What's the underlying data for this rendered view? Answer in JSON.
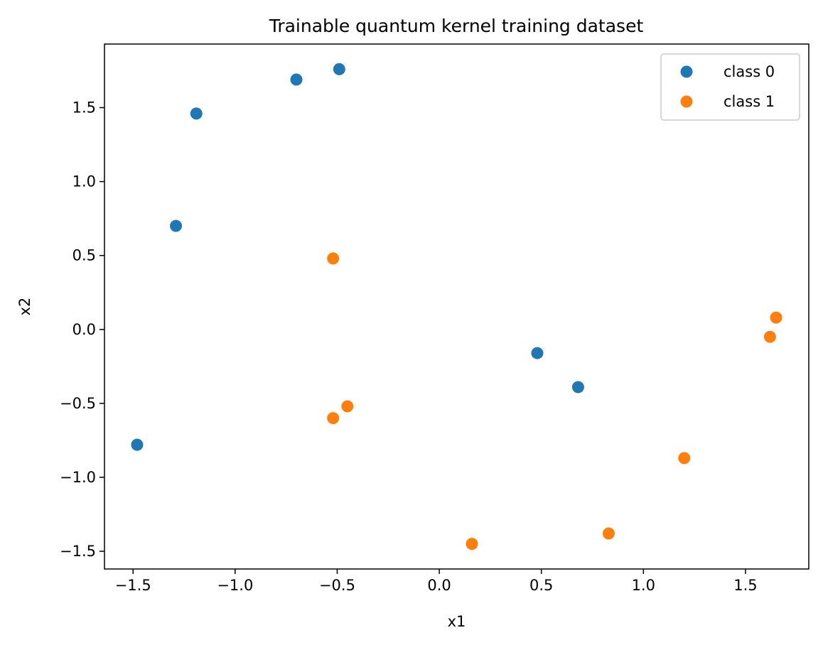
{
  "chart_data": {
    "type": "scatter",
    "title": "Trainable quantum kernel training dataset",
    "xlabel": "x1",
    "ylabel": "x2",
    "xlim": [
      -1.64,
      1.81
    ],
    "ylim": [
      -1.62,
      1.93
    ],
    "xticks": [
      -1.5,
      -1.0,
      -0.5,
      0.0,
      0.5,
      1.0,
      1.5
    ],
    "xtick_labels": [
      "−1.5",
      "−1.0",
      "−0.5",
      "0.0",
      "0.5",
      "1.0",
      "1.5"
    ],
    "yticks": [
      -1.5,
      -1.0,
      -0.5,
      0.0,
      0.5,
      1.0,
      1.5
    ],
    "ytick_labels": [
      "−1.5",
      "−1.0",
      "−0.5",
      "0.0",
      "0.5",
      "1.0",
      "1.5"
    ],
    "grid": false,
    "legend_position": "top-right",
    "series": [
      {
        "name": "class 0",
        "color": "#1f77b4",
        "points": [
          [
            -0.49,
            1.76
          ],
          [
            -0.7,
            1.69
          ],
          [
            -1.19,
            1.46
          ],
          [
            -1.29,
            0.7
          ],
          [
            0.48,
            -0.16
          ],
          [
            0.68,
            -0.39
          ],
          [
            -1.48,
            -0.78
          ]
        ]
      },
      {
        "name": "class 1",
        "color": "#ff7f0e",
        "points": [
          [
            -0.52,
            0.48
          ],
          [
            1.65,
            0.08
          ],
          [
            1.62,
            -0.05
          ],
          [
            -0.45,
            -0.52
          ],
          [
            -0.52,
            -0.6
          ],
          [
            1.2,
            -0.87
          ],
          [
            0.83,
            -1.38
          ],
          [
            0.16,
            -1.45
          ]
        ]
      }
    ]
  }
}
